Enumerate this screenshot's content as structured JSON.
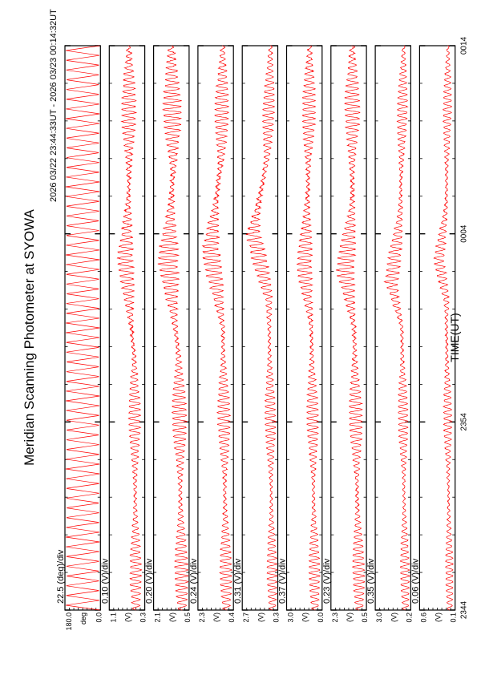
{
  "chart_data": {
    "type": "line",
    "title": "Meridian Scanning Photometer at SYOWA",
    "subtitle": "2026 03/22 23:44:33UT - 2026 03/23 00:14:32UT",
    "xlabel": "TIME(UT)",
    "x_ticks": [
      "2344",
      "2354",
      "0004",
      "0014"
    ],
    "line_color": "#ff0000",
    "panels": [
      {
        "name": "panel-angle",
        "scale": "22.5 (deg)/div",
        "ylim": [
          0.0,
          180.0
        ],
        "y_ticks": [
          "0.0",
          "180.0"
        ],
        "unit": "deg",
        "profile": [
          [
            0,
            0.5
          ],
          [
            1,
            0.5
          ]
        ],
        "amplitude": 0.48,
        "period": 1.0,
        "kind": "sawtooth"
      },
      {
        "name": "panel-1",
        "scale": "0.10 (V)/div",
        "ylim": [
          0.3,
          1.1
        ],
        "y_ticks": [
          "0.3",
          "1.1"
        ],
        "unit": "(V)",
        "profile": [
          [
            0,
            0.25
          ],
          [
            0.45,
            0.3
          ],
          [
            0.62,
            0.55
          ],
          [
            0.75,
            0.45
          ],
          [
            1,
            0.45
          ]
        ],
        "amplitude": 0.2,
        "period": 1.0,
        "kind": "osc"
      },
      {
        "name": "panel-2",
        "scale": "0.20 (V)/div",
        "ylim": [
          0.5,
          2.1
        ],
        "y_ticks": [
          "0.5",
          "2.1"
        ],
        "unit": "(V)",
        "profile": [
          [
            0,
            0.2
          ],
          [
            0.45,
            0.3
          ],
          [
            0.62,
            0.6
          ],
          [
            0.78,
            0.45
          ],
          [
            1,
            0.5
          ]
        ],
        "amplitude": 0.25,
        "period": 1.0,
        "kind": "osc"
      },
      {
        "name": "panel-3",
        "scale": "0.24 (V)/div",
        "ylim": [
          0.4,
          2.3
        ],
        "y_ticks": [
          "0.4",
          "2.3"
        ],
        "unit": "(V)",
        "profile": [
          [
            0,
            0.2
          ],
          [
            0.5,
            0.3
          ],
          [
            0.64,
            0.65
          ],
          [
            0.8,
            0.35
          ],
          [
            1,
            0.3
          ]
        ],
        "amplitude": 0.22,
        "period": 1.0,
        "kind": "osc"
      },
      {
        "name": "panel-4",
        "scale": "0.31 (V)/div",
        "ylim": [
          0.3,
          2.7
        ],
        "y_ticks": [
          "0.3",
          "2.7"
        ],
        "unit": "(V)",
        "profile": [
          [
            0,
            0.15
          ],
          [
            0.55,
            0.25
          ],
          [
            0.67,
            0.7
          ],
          [
            0.8,
            0.3
          ],
          [
            1,
            0.2
          ]
        ],
        "amplitude": 0.2,
        "period": 1.0,
        "kind": "osc"
      },
      {
        "name": "panel-5",
        "scale": "0.37 (V)/div",
        "ylim": [
          0.0,
          3.0
        ],
        "y_ticks": [
          "0.0",
          "3.0"
        ],
        "unit": "(V)",
        "profile": [
          [
            0,
            0.2
          ],
          [
            0.5,
            0.3
          ],
          [
            0.6,
            0.5
          ],
          [
            0.75,
            0.4
          ],
          [
            1,
            0.35
          ]
        ],
        "amplitude": 0.2,
        "period": 1.0,
        "kind": "osc"
      },
      {
        "name": "panel-6",
        "scale": "0.23 (V)/div",
        "ylim": [
          0.5,
          2.3
        ],
        "y_ticks": [
          "0.5",
          "2.3"
        ],
        "unit": "(V)",
        "profile": [
          [
            0,
            0.2
          ],
          [
            0.5,
            0.35
          ],
          [
            0.6,
            0.6
          ],
          [
            0.72,
            0.4
          ],
          [
            1,
            0.4
          ]
        ],
        "amplitude": 0.22,
        "period": 1.0,
        "kind": "osc"
      },
      {
        "name": "panel-7",
        "scale": "0.35 (V)/div",
        "ylim": [
          0.2,
          3.0
        ],
        "y_ticks": [
          "0.2",
          "3.0"
        ],
        "unit": "(V)",
        "profile": [
          [
            0,
            0.15
          ],
          [
            0.5,
            0.25
          ],
          [
            0.58,
            0.55
          ],
          [
            0.7,
            0.3
          ],
          [
            1,
            0.2
          ]
        ],
        "amplitude": 0.18,
        "period": 1.0,
        "kind": "osc"
      },
      {
        "name": "panel-8",
        "scale": "0.06 (V)/div",
        "ylim": [
          0.1,
          0.6
        ],
        "y_ticks": [
          "0.1",
          "0.6"
        ],
        "unit": "(V)",
        "profile": [
          [
            0,
            0.15
          ],
          [
            0.55,
            0.25
          ],
          [
            0.62,
            0.45
          ],
          [
            0.72,
            0.25
          ],
          [
            1,
            0.2
          ]
        ],
        "amplitude": 0.15,
        "period": 1.0,
        "kind": "osc"
      }
    ]
  }
}
